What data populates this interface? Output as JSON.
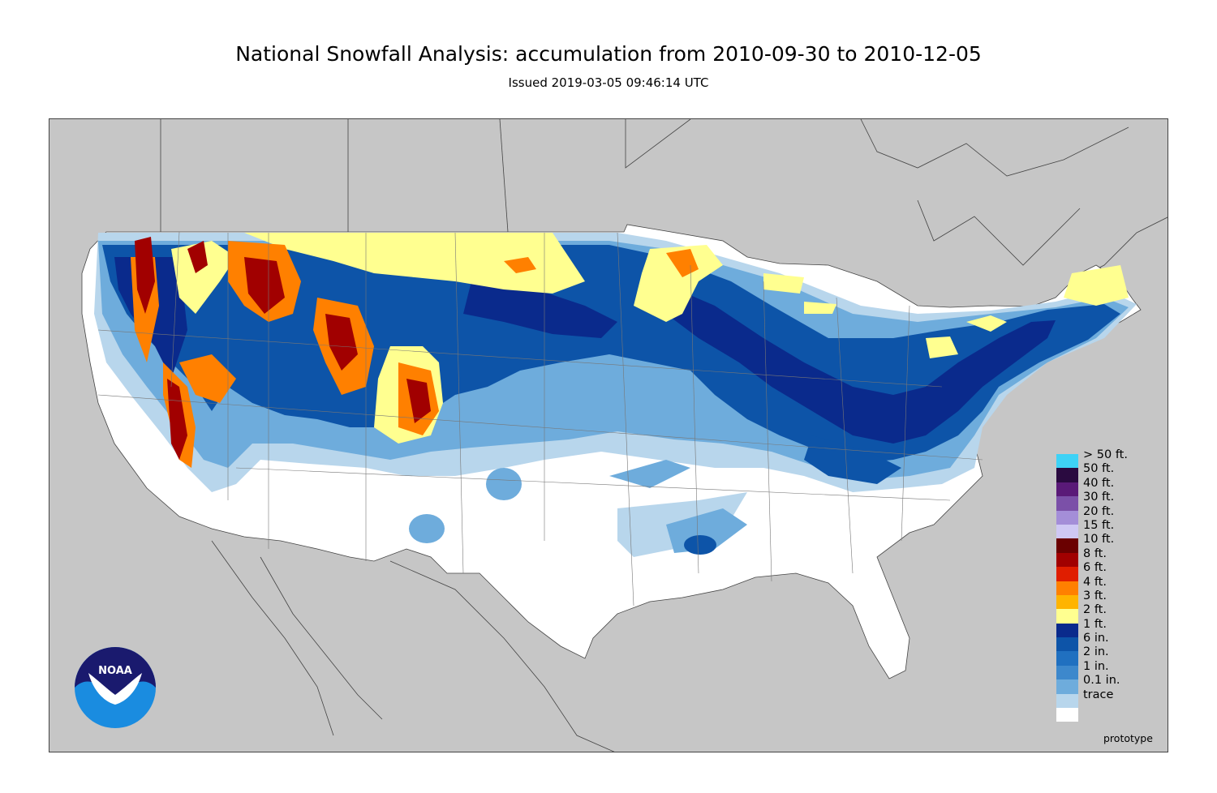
{
  "header": {
    "title": "National Snowfall Analysis: accumulation from 2010-09-30 to 2010-12-05",
    "issued": "Issued 2019-03-05 09:46:14 UTC"
  },
  "map": {
    "background_color": "#c6c6c6",
    "land_color": "#ffffff",
    "border_color": "#444444"
  },
  "legend": {
    "items": [
      {
        "label": "> 50 ft.",
        "color": "#3ed2f6"
      },
      {
        "label": "50 ft.",
        "color": "#2a0a40"
      },
      {
        "label": "40 ft.",
        "color": "#5a1a78"
      },
      {
        "label": "30 ft.",
        "color": "#7b50a8"
      },
      {
        "label": "20 ft.",
        "color": "#a48ed8"
      },
      {
        "label": "15 ft.",
        "color": "#cfc8f4"
      },
      {
        "label": "10 ft.",
        "color": "#6a0000"
      },
      {
        "label": "8 ft.",
        "color": "#a10000"
      },
      {
        "label": "6 ft.",
        "color": "#e01e00"
      },
      {
        "label": "4 ft.",
        "color": "#ff8000"
      },
      {
        "label": "3 ft.",
        "color": "#ffb400"
      },
      {
        "label": "2 ft.",
        "color": "#ffff90"
      },
      {
        "label": "1 ft.",
        "color": "#0a2a8c"
      },
      {
        "label": "6 in.",
        "color": "#0d54a8"
      },
      {
        "label": "2 in.",
        "color": "#2070c0"
      },
      {
        "label": "1 in.",
        "color": "#3d88cc"
      },
      {
        "label": "0.1 in.",
        "color": "#6eacdc"
      },
      {
        "label": "trace",
        "color": "#b8d6ec"
      },
      {
        "label": "",
        "color": "#ffffff"
      }
    ]
  },
  "footer": {
    "prototype": "prototype",
    "logo_text": "NOAA"
  }
}
